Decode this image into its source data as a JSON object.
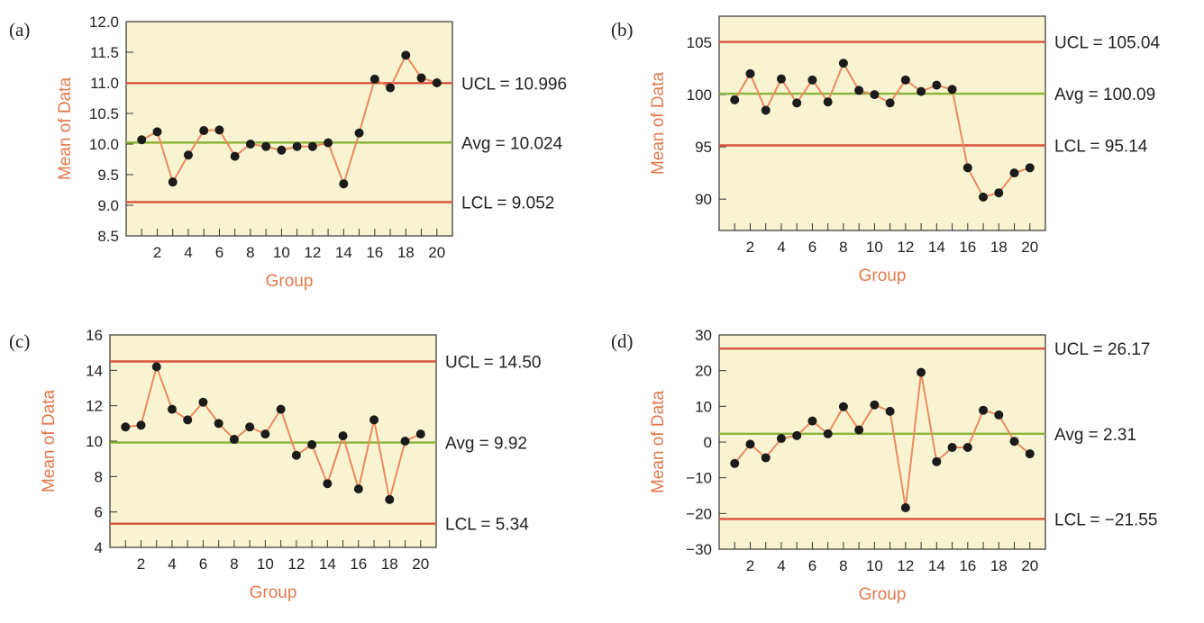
{
  "colors": {
    "plot_background": "#f8f4d2",
    "control_limit": "#d9523d",
    "average": "#8cb33a",
    "series_line": "#ec8a5e",
    "points": "#1b1b1b",
    "axis_label": "#e07a4e"
  },
  "chart_data": [
    {
      "panel": "(a)",
      "type": "line",
      "xlabel": "Group",
      "ylabel": "Mean of Data",
      "xlim": [
        0,
        21
      ],
      "ylim": [
        8.5,
        12.0
      ],
      "x_ticks": [
        2,
        4,
        6,
        8,
        10,
        12,
        14,
        16,
        18,
        20
      ],
      "y_ticks": [
        "8.5",
        "9.0",
        "9.5",
        "10.0",
        "10.5",
        "11.0",
        "11.5",
        "12.0"
      ],
      "limits": [
        {
          "kind": "UCL",
          "value": 10.996,
          "label": "UCL = 10.996"
        },
        {
          "kind": "Avg",
          "value": 10.024,
          "label": "Avg = 10.024"
        },
        {
          "kind": "LCL",
          "value": 9.052,
          "label": "LCL = 9.052"
        }
      ],
      "x": [
        1,
        2,
        3,
        4,
        5,
        6,
        7,
        8,
        9,
        10,
        11,
        12,
        13,
        14,
        15,
        16,
        17,
        18,
        19,
        20
      ],
      "y": [
        10.07,
        10.2,
        9.38,
        9.82,
        10.22,
        10.23,
        9.8,
        10.0,
        9.96,
        9.9,
        9.96,
        9.96,
        10.02,
        9.35,
        10.18,
        11.06,
        10.92,
        11.45,
        11.08,
        11.0
      ]
    },
    {
      "panel": "(b)",
      "type": "line",
      "xlabel": "Group",
      "ylabel": "Mean of Data",
      "xlim": [
        0,
        21
      ],
      "ylim": [
        87,
        107.5
      ],
      "x_ticks": [
        2,
        4,
        6,
        8,
        10,
        12,
        14,
        16,
        18,
        20
      ],
      "y_ticks": [
        "90",
        "95",
        "100",
        "105"
      ],
      "limits": [
        {
          "kind": "UCL",
          "value": 105.04,
          "label": "UCL = 105.04"
        },
        {
          "kind": "Avg",
          "value": 100.09,
          "label": "Avg = 100.09"
        },
        {
          "kind": "LCL",
          "value": 95.14,
          "label": "LCL = 95.14"
        }
      ],
      "x": [
        1,
        2,
        3,
        4,
        5,
        6,
        7,
        8,
        9,
        10,
        11,
        12,
        13,
        14,
        15,
        16,
        17,
        18,
        19,
        20
      ],
      "y": [
        99.5,
        102.0,
        98.5,
        101.5,
        99.2,
        101.4,
        99.3,
        103.0,
        100.4,
        100.0,
        99.2,
        101.4,
        100.3,
        100.9,
        100.5,
        93.0,
        90.2,
        90.6,
        92.5,
        93.0
      ]
    },
    {
      "panel": "(c)",
      "type": "line",
      "xlabel": "Group",
      "ylabel": "Mean of Data",
      "xlim": [
        0,
        21
      ],
      "ylim": [
        4,
        16
      ],
      "x_ticks": [
        2,
        4,
        6,
        8,
        10,
        12,
        14,
        16,
        18,
        20
      ],
      "y_ticks": [
        "4",
        "6",
        "8",
        "10",
        "12",
        "14",
        "16"
      ],
      "limits": [
        {
          "kind": "UCL",
          "value": 14.5,
          "label": "UCL = 14.50"
        },
        {
          "kind": "Avg",
          "value": 9.92,
          "label": "Avg = 9.92"
        },
        {
          "kind": "LCL",
          "value": 5.34,
          "label": "LCL = 5.34"
        }
      ],
      "x": [
        1,
        2,
        3,
        4,
        5,
        6,
        7,
        8,
        9,
        10,
        11,
        12,
        13,
        14,
        15,
        16,
        17,
        18,
        19,
        20
      ],
      "y": [
        10.8,
        10.9,
        14.2,
        11.8,
        11.2,
        12.2,
        11.0,
        10.1,
        10.8,
        10.4,
        11.8,
        9.2,
        9.8,
        7.6,
        10.3,
        7.3,
        11.2,
        6.7,
        10.0,
        10.4
      ]
    },
    {
      "panel": "(d)",
      "type": "line",
      "xlabel": "Group",
      "ylabel": "Mean of Data",
      "xlim": [
        0,
        21
      ],
      "ylim": [
        -30,
        30
      ],
      "x_ticks": [
        2,
        4,
        6,
        8,
        10,
        12,
        14,
        16,
        18,
        20
      ],
      "y_ticks": [
        "−30",
        "−20",
        "−10",
        "0",
        "10",
        "20",
        "30"
      ],
      "limits": [
        {
          "kind": "UCL",
          "value": 26.17,
          "label": "UCL = 26.17"
        },
        {
          "kind": "Avg",
          "value": 2.31,
          "label": "Avg = 2.31"
        },
        {
          "kind": "LCL",
          "value": -21.55,
          "label": "LCL = −21.55"
        }
      ],
      "x": [
        1,
        2,
        3,
        4,
        5,
        6,
        7,
        8,
        9,
        10,
        11,
        12,
        13,
        14,
        15,
        16,
        17,
        18,
        19,
        20
      ],
      "y": [
        -6.0,
        -0.6,
        -4.4,
        1.0,
        1.8,
        5.9,
        2.3,
        9.9,
        3.4,
        10.4,
        8.6,
        -18.4,
        19.5,
        -5.5,
        -1.5,
        -1.5,
        8.9,
        7.6,
        0.2,
        -3.3
      ]
    }
  ]
}
